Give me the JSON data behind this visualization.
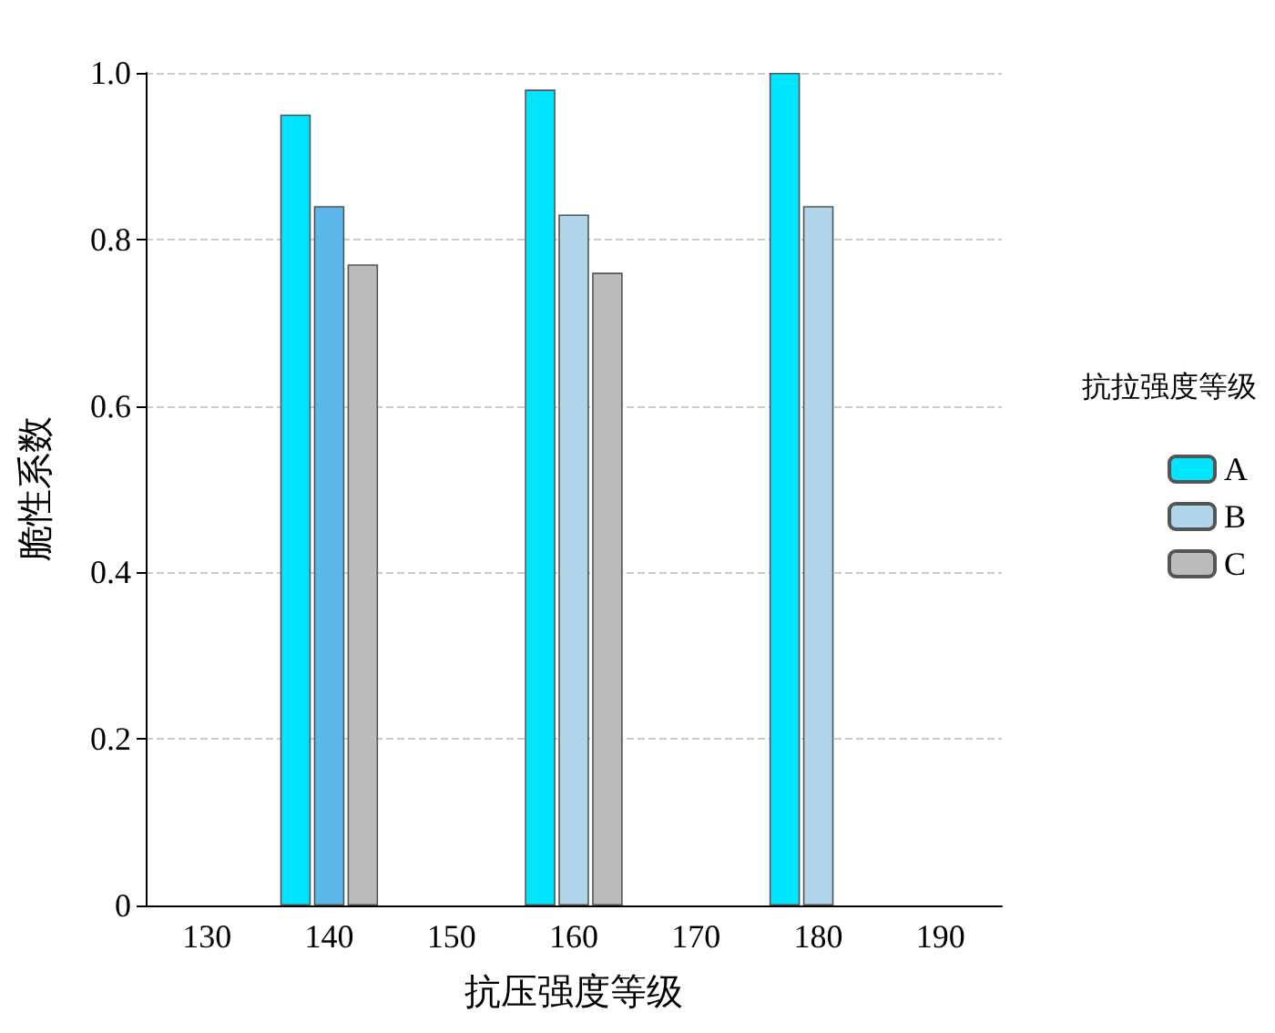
{
  "chart_data": {
    "type": "bar",
    "xlabel": "抗压强度等级",
    "ylabel": "脆性系数",
    "legend_title": "抗拉强度等级",
    "categories": [
      "130",
      "140",
      "150",
      "160",
      "170",
      "180",
      "190"
    ],
    "series": [
      {
        "name": "A",
        "color": "#00e5ff",
        "values": [
          null,
          0.95,
          null,
          0.98,
          null,
          1.0,
          null
        ]
      },
      {
        "name": "B",
        "color": "#b0d4ea",
        "colors": [
          null,
          "#5cb8ea",
          null,
          "#b0d4ea",
          null,
          "#b0d4ea",
          null
        ],
        "values": [
          null,
          0.84,
          null,
          0.83,
          null,
          0.84,
          null
        ]
      },
      {
        "name": "C",
        "color": "#bbbbbb",
        "values": [
          null,
          0.77,
          null,
          0.76,
          null,
          null,
          null
        ]
      }
    ],
    "ylim": [
      0,
      1
    ],
    "yticks": [
      {
        "value": 0,
        "label": "0"
      },
      {
        "value": 0.2,
        "label": "0.2"
      },
      {
        "value": 0.4,
        "label": "0.4"
      },
      {
        "value": 0.6,
        "label": "0.6"
      },
      {
        "value": 0.8,
        "label": "0.8"
      },
      {
        "value": 1,
        "label": "1.0"
      }
    ],
    "grid": true,
    "legend": "right"
  }
}
